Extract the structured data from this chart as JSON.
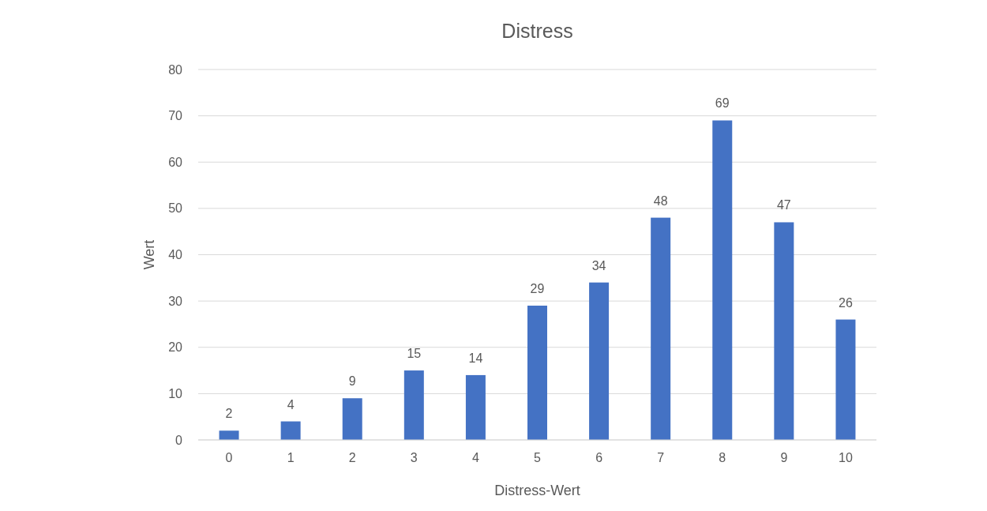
{
  "chart_data": {
    "type": "bar",
    "title": "Distress",
    "xlabel": "Distress-Wert",
    "ylabel": "Wert",
    "categories": [
      "0",
      "1",
      "2",
      "3",
      "4",
      "5",
      "6",
      "7",
      "8",
      "9",
      "10"
    ],
    "values": [
      2,
      4,
      9,
      15,
      14,
      29,
      34,
      48,
      69,
      47,
      26
    ],
    "color": "#4472c4",
    "ylim": [
      0,
      80
    ],
    "yticks": [
      0,
      10,
      20,
      30,
      40,
      50,
      60,
      70,
      80
    ],
    "grid": "y",
    "data_labels": true
  }
}
